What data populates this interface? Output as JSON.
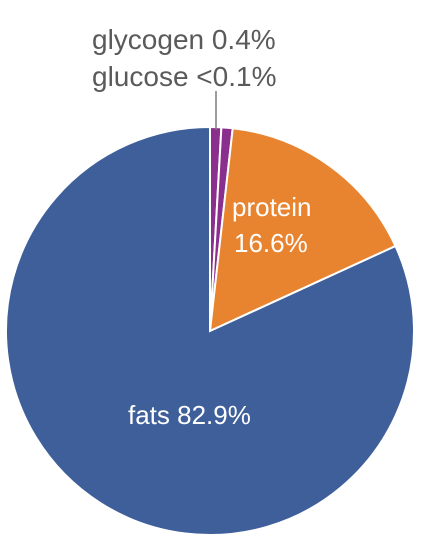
{
  "chart_data": {
    "type": "pie",
    "title": "",
    "slices": [
      {
        "label": "glycogen",
        "display": "0.4%",
        "value": 0.4,
        "color": "#8b2f8f"
      },
      {
        "label": "glucose",
        "display": "<0.1%",
        "value": 0.1,
        "color": "#8b2f8f"
      },
      {
        "label": "protein",
        "display": "16.6%",
        "value": 16.6,
        "color": "#e8842f"
      },
      {
        "label": "fats",
        "display": "82.9%",
        "value": 82.9,
        "color": "#3e5f9a"
      }
    ]
  },
  "labels": {
    "glycogen": "glycogen 0.4%",
    "glucose": "glucose <0.1%",
    "protein_name": "protein",
    "protein_value": "16.6%",
    "fats": "fats 82.9%"
  }
}
